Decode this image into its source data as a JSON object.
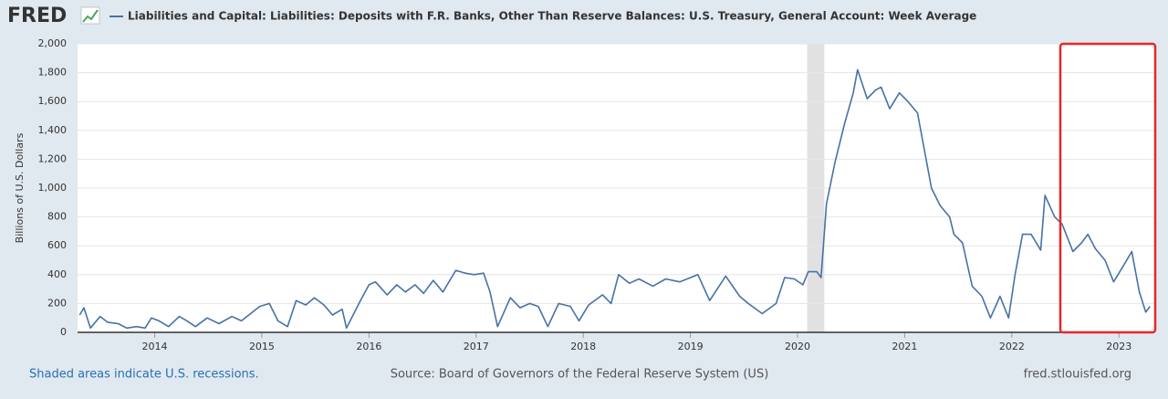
{
  "logo": "FRED",
  "chart_data": {
    "type": "line",
    "ylabel": "Billions of U.S. Dollars",
    "xlim": [
      2013.28,
      2023.33
    ],
    "xticks": [
      2014,
      2015,
      2016,
      2017,
      2018,
      2019,
      2020,
      2021,
      2022,
      2023
    ],
    "ylim": [
      0,
      2000
    ],
    "yticks": [
      0,
      200,
      400,
      600,
      800,
      {
        "value": 1000,
        "label": "1,000"
      },
      {
        "value": 1200,
        "label": "1,200"
      },
      {
        "value": 1400,
        "label": "1,400"
      },
      {
        "value": 1600,
        "label": "1,600"
      },
      {
        "value": 1800,
        "label": "1,800"
      },
      {
        "value": 2000,
        "label": "2,000"
      }
    ],
    "grid": true,
    "recessions": [
      [
        2020.09,
        2020.25
      ]
    ],
    "recession_color": "#e1e1e1",
    "x": [
      2013.3,
      2013.34,
      2013.4,
      2013.49,
      2013.56,
      2013.66,
      2013.74,
      2013.83,
      2013.91,
      2013.97,
      2014.04,
      2014.13,
      2014.23,
      2014.3,
      2014.38,
      2014.49,
      2014.6,
      2014.72,
      2014.81,
      2014.98,
      2015.07,
      2015.15,
      2015.24,
      2015.32,
      2015.41,
      2015.49,
      2015.58,
      2015.66,
      2015.75,
      2015.79,
      2015.92,
      2016.0,
      2016.06,
      2016.17,
      2016.26,
      2016.34,
      2016.43,
      2016.51,
      2016.6,
      2016.69,
      2016.81,
      2016.9,
      2016.98,
      2017.07,
      2017.13,
      2017.2,
      2017.32,
      2017.41,
      2017.5,
      2017.58,
      2017.67,
      2017.77,
      2017.88,
      2017.96,
      2018.05,
      2018.18,
      2018.26,
      2018.33,
      2018.43,
      2018.52,
      2018.65,
      2018.77,
      2018.9,
      2019.07,
      2019.18,
      2019.33,
      2019.46,
      2019.54,
      2019.67,
      2019.8,
      2019.88,
      2019.97,
      2020.05,
      2020.1,
      2020.18,
      2020.22,
      2020.27,
      2020.35,
      2020.44,
      2020.52,
      2020.56,
      2020.65,
      2020.73,
      2020.78,
      2020.86,
      2020.95,
      2021.03,
      2021.12,
      2021.2,
      2021.25,
      2021.33,
      2021.42,
      2021.46,
      2021.54,
      2021.63,
      2021.72,
      2021.8,
      2021.89,
      2021.97,
      2022.03,
      2022.1,
      2022.18,
      2022.27,
      2022.31,
      2022.4,
      2022.47,
      2022.57,
      2022.65,
      2022.71,
      2022.78,
      2022.87,
      2022.95,
      2023.04,
      2023.12,
      2023.19,
      2023.25,
      2023.29
    ],
    "series": [
      {
        "name": "Liabilities and Capital: Liabilities: Deposits with F.R. Banks, Other Than Reserve Balances: U.S. Treasury, General Account: Week Average",
        "color": "#4572a7",
        "values": [
          120,
          170,
          30,
          110,
          70,
          60,
          30,
          40,
          30,
          100,
          80,
          40,
          110,
          80,
          40,
          100,
          60,
          110,
          80,
          180,
          200,
          80,
          40,
          220,
          190,
          240,
          190,
          120,
          160,
          30,
          220,
          330,
          350,
          260,
          330,
          280,
          330,
          270,
          360,
          280,
          430,
          410,
          400,
          410,
          280,
          40,
          240,
          170,
          200,
          180,
          40,
          200,
          180,
          80,
          190,
          260,
          200,
          400,
          340,
          370,
          320,
          370,
          350,
          400,
          220,
          390,
          250,
          200,
          130,
          200,
          380,
          370,
          330,
          420,
          420,
          380,
          890,
          1180,
          1450,
          1660,
          1820,
          1620,
          1680,
          1700,
          1550,
          1660,
          1600,
          1520,
          1200,
          1000,
          880,
          800,
          680,
          620,
          320,
          250,
          100,
          250,
          100,
          400,
          680,
          680,
          570,
          950,
          800,
          750,
          560,
          620,
          680,
          580,
          500,
          350,
          460,
          560,
          280,
          140,
          180
        ]
      }
    ],
    "source": "Source: Board of Governors of the Federal Reserve System (US)",
    "note": "Shaded areas indicate U.S. recessions.",
    "site": "fred.stlouisfed.org"
  }
}
